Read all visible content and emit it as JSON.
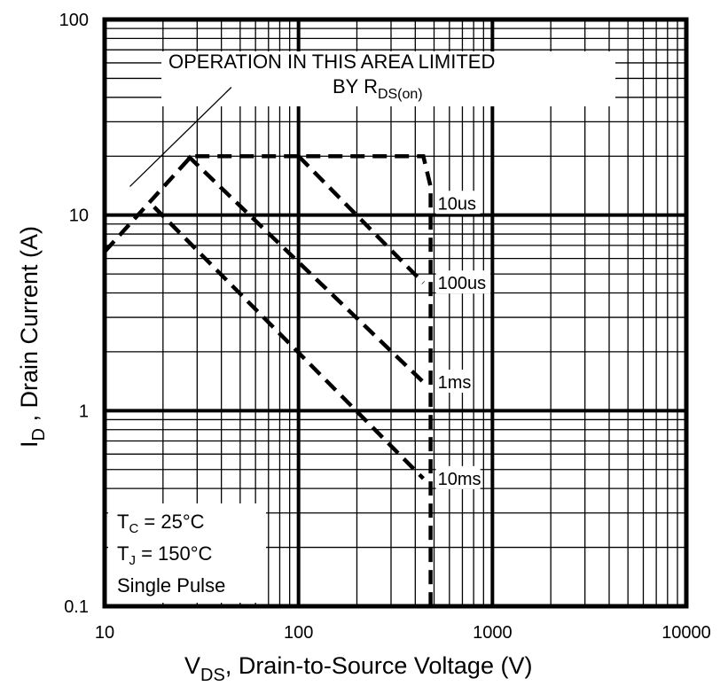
{
  "chart_data": {
    "type": "line",
    "x_scale": "log",
    "y_scale": "log",
    "xlim": [
      10,
      10000
    ],
    "ylim": [
      0.1,
      100
    ],
    "grid": true,
    "x_ticks": [
      "10",
      "100",
      "1000",
      "10000"
    ],
    "y_ticks": [
      "100",
      "10",
      "1",
      "0.1"
    ],
    "xlabel": {
      "main": "V",
      "sub": "DS",
      "rest": ", Drain-to-Source Voltage (V)"
    },
    "ylabel": {
      "main": "I",
      "sub": "D",
      "rest": " , Drain Current (A)"
    },
    "annotation": {
      "line1": "OPERATION IN THIS AREA LIMITED",
      "line2_main": "BY R",
      "line2_sub": "DS(on)"
    },
    "conditions": {
      "tc_main": "T",
      "tc_sub": "C",
      "tc_rest": " = 25°C",
      "tj_main": "T",
      "tj_sub": "J",
      "tj_rest": " = 150°C",
      "pulse": "Single Pulse"
    },
    "rds_on_line": {
      "x": [
        13.5,
        45
      ],
      "y": [
        14,
        45
      ]
    },
    "series": [
      {
        "name": "10us",
        "style": "dashed",
        "x": [
          10,
          28,
          440,
          480,
          480
        ],
        "y": [
          6.5,
          20,
          20,
          14,
          0.1
        ]
      },
      {
        "name": "100us",
        "x": [
          100,
          440
        ],
        "y": [
          20,
          4.5
        ]
      },
      {
        "name": "1ms",
        "x": [
          27,
          440
        ],
        "y": [
          20,
          1.4
        ]
      },
      {
        "name": "10ms",
        "x": [
          18,
          440
        ],
        "y": [
          11,
          0.45
        ]
      }
    ]
  }
}
